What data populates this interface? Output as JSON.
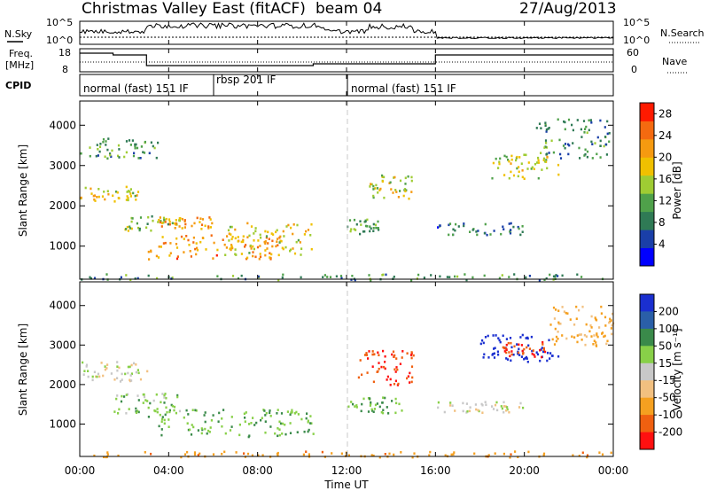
{
  "header": {
    "title": "Christmas Valley East (fitACF)",
    "beam": "beam 04",
    "date": "27/Aug/2013"
  },
  "noise_panel": {
    "left_label": "N.Sky",
    "right_label": "N.Search",
    "left_ticks": [
      "10^5",
      "10^0"
    ],
    "right_ticks": [
      "10^5",
      "10^0"
    ]
  },
  "freq_panel": {
    "left_label_1": "Freq.",
    "left_label_2": "[MHz]",
    "right_label": "Nave",
    "left_ticks": [
      "18",
      "8"
    ],
    "right_ticks": [
      "60",
      "0"
    ]
  },
  "cpid_panel": {
    "label": "CPID",
    "modes": [
      {
        "name": "normal (fast) 151 IF",
        "start_hour": 0,
        "end_hour": 6
      },
      {
        "name": "rbsp 201 IF",
        "start_hour": 6,
        "end_hour": 12
      },
      {
        "name": "normal (fast) 151 IF",
        "start_hour": 12,
        "end_hour": 24
      }
    ]
  },
  "chart_data": [
    {
      "type": "heatmap",
      "name": "power",
      "ylabel": "Slant Range [km]",
      "xlabel": "Time UT",
      "x_range_hours": [
        0,
        24
      ],
      "ylim": [
        180,
        4600
      ],
      "yticks": [
        1000,
        2000,
        3000,
        4000
      ],
      "xticks": [
        "00:00",
        "04:00",
        "08:00",
        "12:00",
        "16:00",
        "20:00",
        "00:00"
      ],
      "colorbar": {
        "label": "Power [dB]",
        "ticks": [
          4,
          8,
          12,
          16,
          20,
          24,
          28
        ],
        "range": [
          0,
          30
        ],
        "colors": [
          "#0000ff",
          "#1a3fa8",
          "#2f7a55",
          "#4fa14a",
          "#9fcc33",
          "#f0c000",
          "#f59a10",
          "#f46a10",
          "#ff1a00"
        ]
      },
      "features": [
        {
          "t": [
            0.0,
            2.6
          ],
          "r": [
            2100,
            2500
          ],
          "level": 18
        },
        {
          "t": [
            0.0,
            3.5
          ],
          "r": [
            3200,
            3700
          ],
          "level": 10
        },
        {
          "t": [
            2.0,
            4.5
          ],
          "r": [
            1400,
            1800
          ],
          "level": 14
        },
        {
          "t": [
            3.5,
            6.0
          ],
          "r": [
            1450,
            1750
          ],
          "level": 22
        },
        {
          "t": [
            3.0,
            9.0
          ],
          "r": [
            700,
            1300
          ],
          "level": 22
        },
        {
          "t": [
            6.5,
            10.5
          ],
          "r": [
            800,
            1600
          ],
          "level": 18
        },
        {
          "t": [
            12.0,
            13.5
          ],
          "r": [
            1300,
            1700
          ],
          "level": 12
        },
        {
          "t": [
            13.0,
            15.0
          ],
          "r": [
            2200,
            2800
          ],
          "level": 16
        },
        {
          "t": [
            16.0,
            20.0
          ],
          "r": [
            1300,
            1600
          ],
          "level": 8
        },
        {
          "t": [
            18.5,
            21.5
          ],
          "r": [
            2700,
            3300
          ],
          "level": 16
        },
        {
          "t": [
            20.5,
            23.8
          ],
          "r": [
            3200,
            4200
          ],
          "level": 10
        },
        {
          "t": [
            0.0,
            24.0
          ],
          "r": [
            180,
            330
          ],
          "level": 10
        }
      ]
    },
    {
      "type": "heatmap",
      "name": "velocity",
      "ylabel": "Slant Range [km]",
      "xlabel": "Time UT",
      "x_range_hours": [
        0,
        24
      ],
      "ylim": [
        180,
        4600
      ],
      "yticks": [
        1000,
        2000,
        3000,
        4000
      ],
      "xticks": [
        "00:00",
        "04:00",
        "08:00",
        "12:00",
        "16:00",
        "20:00",
        "00:00"
      ],
      "colorbar": {
        "label": "Velocity [m s⁻¹]",
        "ticks": [
          200,
          100,
          50,
          15,
          -15,
          -50,
          -100,
          -200
        ],
        "colors": [
          "#1a2fd0",
          "#2a5fa8",
          "#3a8a4a",
          "#88d048",
          "#c8c8c8",
          "#f2c080",
          "#f5a020",
          "#f06010",
          "#ff1010"
        ]
      },
      "features": [
        {
          "t": [
            0.0,
            3.0
          ],
          "r": [
            2100,
            2600
          ],
          "level": 0
        },
        {
          "t": [
            1.5,
            4.5
          ],
          "r": [
            1300,
            1800
          ],
          "level": 20
        },
        {
          "t": [
            3.0,
            10.5
          ],
          "r": [
            700,
            1400
          ],
          "level": 30
        },
        {
          "t": [
            12.5,
            15.0
          ],
          "r": [
            2000,
            2900
          ],
          "level": -150
        },
        {
          "t": [
            12.0,
            14.5
          ],
          "r": [
            1300,
            1700
          ],
          "level": 30
        },
        {
          "t": [
            16.0,
            20.0
          ],
          "r": [
            1300,
            1600
          ],
          "level": 0
        },
        {
          "t": [
            18.0,
            21.5
          ],
          "r": [
            2600,
            3300
          ],
          "level": 200
        },
        {
          "t": [
            19.0,
            21.0
          ],
          "r": [
            2700,
            3100
          ],
          "level": -150
        },
        {
          "t": [
            21.0,
            24.0
          ],
          "r": [
            3000,
            4000
          ],
          "level": -40
        },
        {
          "t": [
            0.0,
            24.0
          ],
          "r": [
            180,
            330
          ],
          "level": -60
        }
      ]
    }
  ]
}
